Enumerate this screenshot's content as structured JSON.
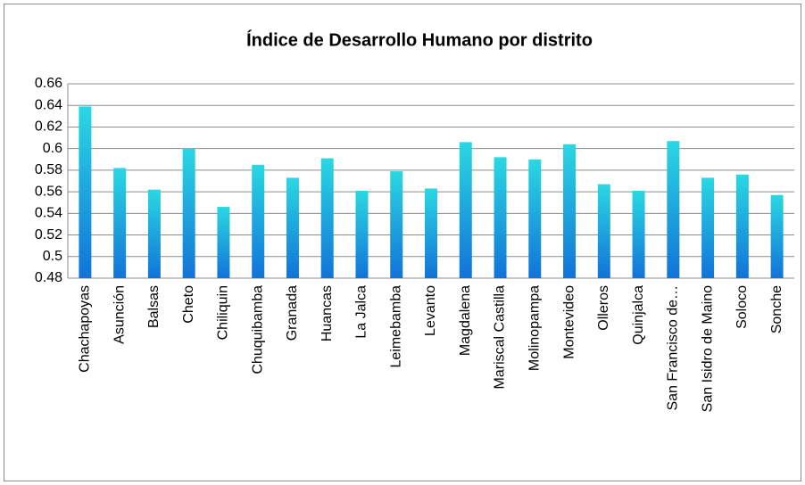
{
  "chart_data": {
    "type": "bar",
    "title": "Índice de Desarrollo Humano por distrito",
    "categories": [
      "Chachapoyas",
      "Asunción",
      "Balsas",
      "Cheto",
      "Chiliquin",
      "Chuquibamba",
      "Granada",
      "Huancas",
      "La Jalca",
      "Leimebamba",
      "Levanto",
      "Magdalena",
      "Mariscal Castilla",
      "Molinopampa",
      "Montevideo",
      "Olleros",
      "Quinjalca",
      "San Francisco de…",
      "San Isidro de Maino",
      "Soloco",
      "Sonche"
    ],
    "values": [
      0.639,
      0.582,
      0.562,
      0.6,
      0.546,
      0.585,
      0.573,
      0.591,
      0.561,
      0.579,
      0.563,
      0.606,
      0.592,
      0.59,
      0.604,
      0.567,
      0.561,
      0.607,
      0.573,
      0.576,
      0.557
    ],
    "color": [
      "#2ad8e2",
      "#1173d8"
    ],
    "ylim": [
      0.48,
      0.66
    ],
    "yticks": [
      0.48,
      0.5,
      0.52,
      0.54,
      0.56,
      0.58,
      0.6,
      0.62,
      0.64,
      0.66
    ],
    "grid": true
  }
}
